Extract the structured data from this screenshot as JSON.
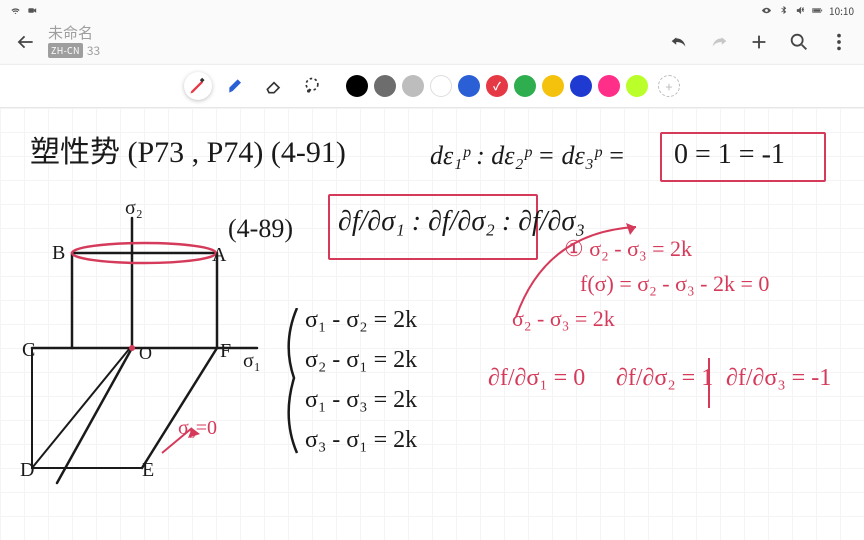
{
  "status": {
    "time": "10:10",
    "battery_pct": "92"
  },
  "header": {
    "title": "未命名",
    "lang_badge": "ZH-CN",
    "page_number": "33"
  },
  "tools": {
    "items": [
      {
        "name": "pen",
        "selected": true
      },
      {
        "name": "marker",
        "selected": false
      },
      {
        "name": "eraser",
        "selected": false
      },
      {
        "name": "lasso",
        "selected": false
      }
    ]
  },
  "palette": {
    "colors": [
      "#000000",
      "#6d6d6d",
      "#bdbdbd",
      "#ffffff",
      "#2a5fd6",
      "#e63946",
      "#2fae4f",
      "#f4c20d",
      "#1f3ad1",
      "#ff2e88",
      "#baff29"
    ],
    "selected_index": 5
  },
  "ink": {
    "black": "#1a1a1a",
    "red": "#d63a5a"
  },
  "notes": {
    "line1_left": "塑性势 (P73 , P74) (4-91)",
    "line1_mid": "dε₁ᵖ : dε₂ᵖ = dε₃ᵖ =",
    "line1_box": "0 = 1 = -1",
    "eq_ref": "(4-89)",
    "frac_box": "∂f/∂σ₁ : ∂f/∂σ₂ : ∂f/∂σ₃",
    "sigma2": "σ₂",
    "pt_B": "B",
    "pt_A": "A",
    "pt_O": "O",
    "pt_C": "C",
    "pt_D": "D",
    "pt_E": "E",
    "pt_F": "F",
    "sigma1": "σ₁",
    "sigma3_eq": "σ₃=0",
    "brace_eq1": "σ₁ - σ₂ = 2k",
    "brace_eq2": "σ₂ - σ₁ = 2k",
    "brace_eq3": "σ₁ - σ₃ = 2k",
    "brace_eq4": "σ₃ - σ₁ = 2k",
    "red_top1": "① σ₂ - σ₃ = 2k",
    "red_top2": "f(σ) = σ₂ - σ₃ - 2k = 0",
    "red_mid": "σ₂ - σ₃ = 2k",
    "red_pd1": "∂f/∂σ₁ = 0",
    "red_pd2": "∂f/∂σ₂ = 1",
    "red_pd3": "∂f/∂σ₃ = -1"
  }
}
